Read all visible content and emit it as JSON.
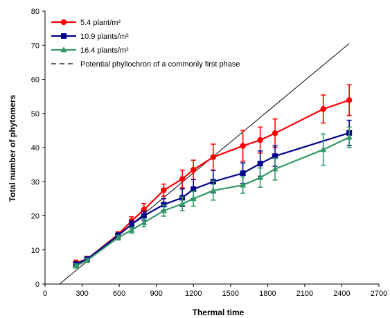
{
  "chart_data": {
    "type": "line",
    "xlabel": "Thermal time",
    "ylabel": "Total number of phytomers",
    "xlim": [
      0,
      2700
    ],
    "ylim": [
      0,
      80
    ],
    "xticks": [
      0,
      300,
      600,
      900,
      1200,
      1500,
      1800,
      2100,
      2400,
      2700
    ],
    "yticks": [
      0,
      10,
      20,
      30,
      40,
      50,
      60,
      70,
      80
    ],
    "legend_position": "top-left",
    "series": [
      {
        "name": "5.4 plant/m²",
        "color": "#ff0000",
        "marker": "circle",
        "x": [
          250,
          340,
          590,
          700,
          800,
          960,
          1110,
          1200,
          1360,
          1600,
          1740,
          1860,
          2250,
          2460
        ],
        "y": [
          6.2,
          7.3,
          14.5,
          18.5,
          21.8,
          27.5,
          30.8,
          33.5,
          37.2,
          40.5,
          42.2,
          44.2,
          51.3,
          53.9
        ],
        "err": [
          0.8,
          0.8,
          0.8,
          1.2,
          1.8,
          1.8,
          2.6,
          2.8,
          3.8,
          4.5,
          3.8,
          4.2,
          4.1,
          4.5
        ]
      },
      {
        "name": "10.9 plants/m²",
        "color": "#00008b",
        "marker": "square",
        "x": [
          250,
          340,
          590,
          700,
          800,
          960,
          1110,
          1200,
          1360,
          1600,
          1740,
          1860,
          2460
        ],
        "y": [
          5.8,
          7.3,
          14.2,
          17.5,
          20.0,
          23.3,
          25.3,
          27.8,
          30.0,
          32.5,
          35.3,
          37.5,
          44.3
        ],
        "err": [
          0.7,
          0.7,
          0.8,
          1.0,
          1.3,
          1.7,
          2.6,
          2.8,
          3.3,
          3.0,
          3.7,
          3.0,
          3.7
        ]
      },
      {
        "name": "16.4 plants/m²",
        "color": "#339966",
        "marker": "triangle",
        "x": [
          250,
          340,
          590,
          700,
          800,
          960,
          1110,
          1200,
          1360,
          1600,
          1740,
          1860,
          2250,
          2460
        ],
        "y": [
          5.3,
          6.9,
          13.6,
          15.8,
          18.0,
          21.5,
          23.5,
          25.0,
          27.4,
          29.0,
          31.2,
          33.7,
          39.4,
          43.0
        ],
        "err": [
          0.6,
          0.6,
          0.7,
          0.9,
          1.2,
          1.6,
          2.0,
          2.2,
          2.8,
          2.4,
          2.8,
          3.2,
          4.6,
          3.0
        ]
      },
      {
        "name": "Potential phyllochron of a commonly first phase",
        "color": "#000000",
        "marker": "none",
        "style": "dashed",
        "x": [
          118,
          2460
        ],
        "y": [
          0,
          70.5
        ]
      }
    ]
  }
}
